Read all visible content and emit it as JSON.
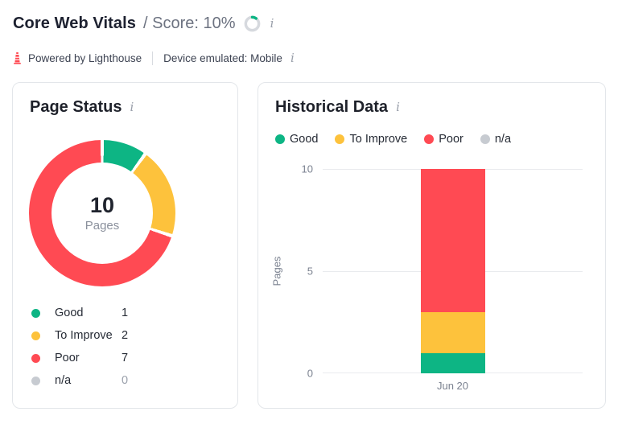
{
  "header": {
    "title": "Core Web Vitals",
    "score_label": "/ Score: 10%",
    "score_percent": 10,
    "powered_by": "Powered by Lighthouse",
    "device": "Device emulated: Mobile",
    "info_icon": "i"
  },
  "colors": {
    "good": "#0db584",
    "to_improve": "#fdc23c",
    "poor": "#ff4a53",
    "na": "#c7cbd1",
    "ring_track": "#d6d9de",
    "lighthouse_red": "#ff4a53"
  },
  "page_status": {
    "title": "Page Status",
    "center_value": "10",
    "center_label": "Pages",
    "legend": [
      {
        "label": "Good",
        "value": 1
      },
      {
        "label": "To Improve",
        "value": 2
      },
      {
        "label": "Poor",
        "value": 7
      },
      {
        "label": "n/a",
        "value": 0
      }
    ]
  },
  "historical": {
    "title": "Historical Data",
    "legend": [
      "Good",
      "To Improve",
      "Poor",
      "n/a"
    ]
  },
  "chart_data": [
    {
      "type": "pie",
      "variant": "donut",
      "title": "Page Status",
      "labels": [
        "Good",
        "To Improve",
        "Poor",
        "n/a"
      ],
      "values": [
        1,
        2,
        7,
        0
      ],
      "colors": [
        "#0db584",
        "#fdc23c",
        "#ff4a53",
        "#c7cbd1"
      ],
      "center_text": "10 Pages",
      "start_angle_deg": 0,
      "direction": "clockwise"
    },
    {
      "type": "bar",
      "stacked": true,
      "title": "Historical Data",
      "categories": [
        "Jun 20"
      ],
      "series": [
        {
          "name": "Good",
          "values": [
            1
          ]
        },
        {
          "name": "To Improve",
          "values": [
            2
          ]
        },
        {
          "name": "Poor",
          "values": [
            7
          ]
        },
        {
          "name": "n/a",
          "values": [
            0
          ]
        }
      ],
      "colors": [
        "#0db584",
        "#fdc23c",
        "#ff4a53",
        "#c7cbd1"
      ],
      "xlabel": "",
      "ylabel": "Pages",
      "ylim": [
        0,
        10
      ],
      "yticks": [
        0,
        5,
        10
      ],
      "grid": true,
      "legend_position": "top"
    }
  ]
}
